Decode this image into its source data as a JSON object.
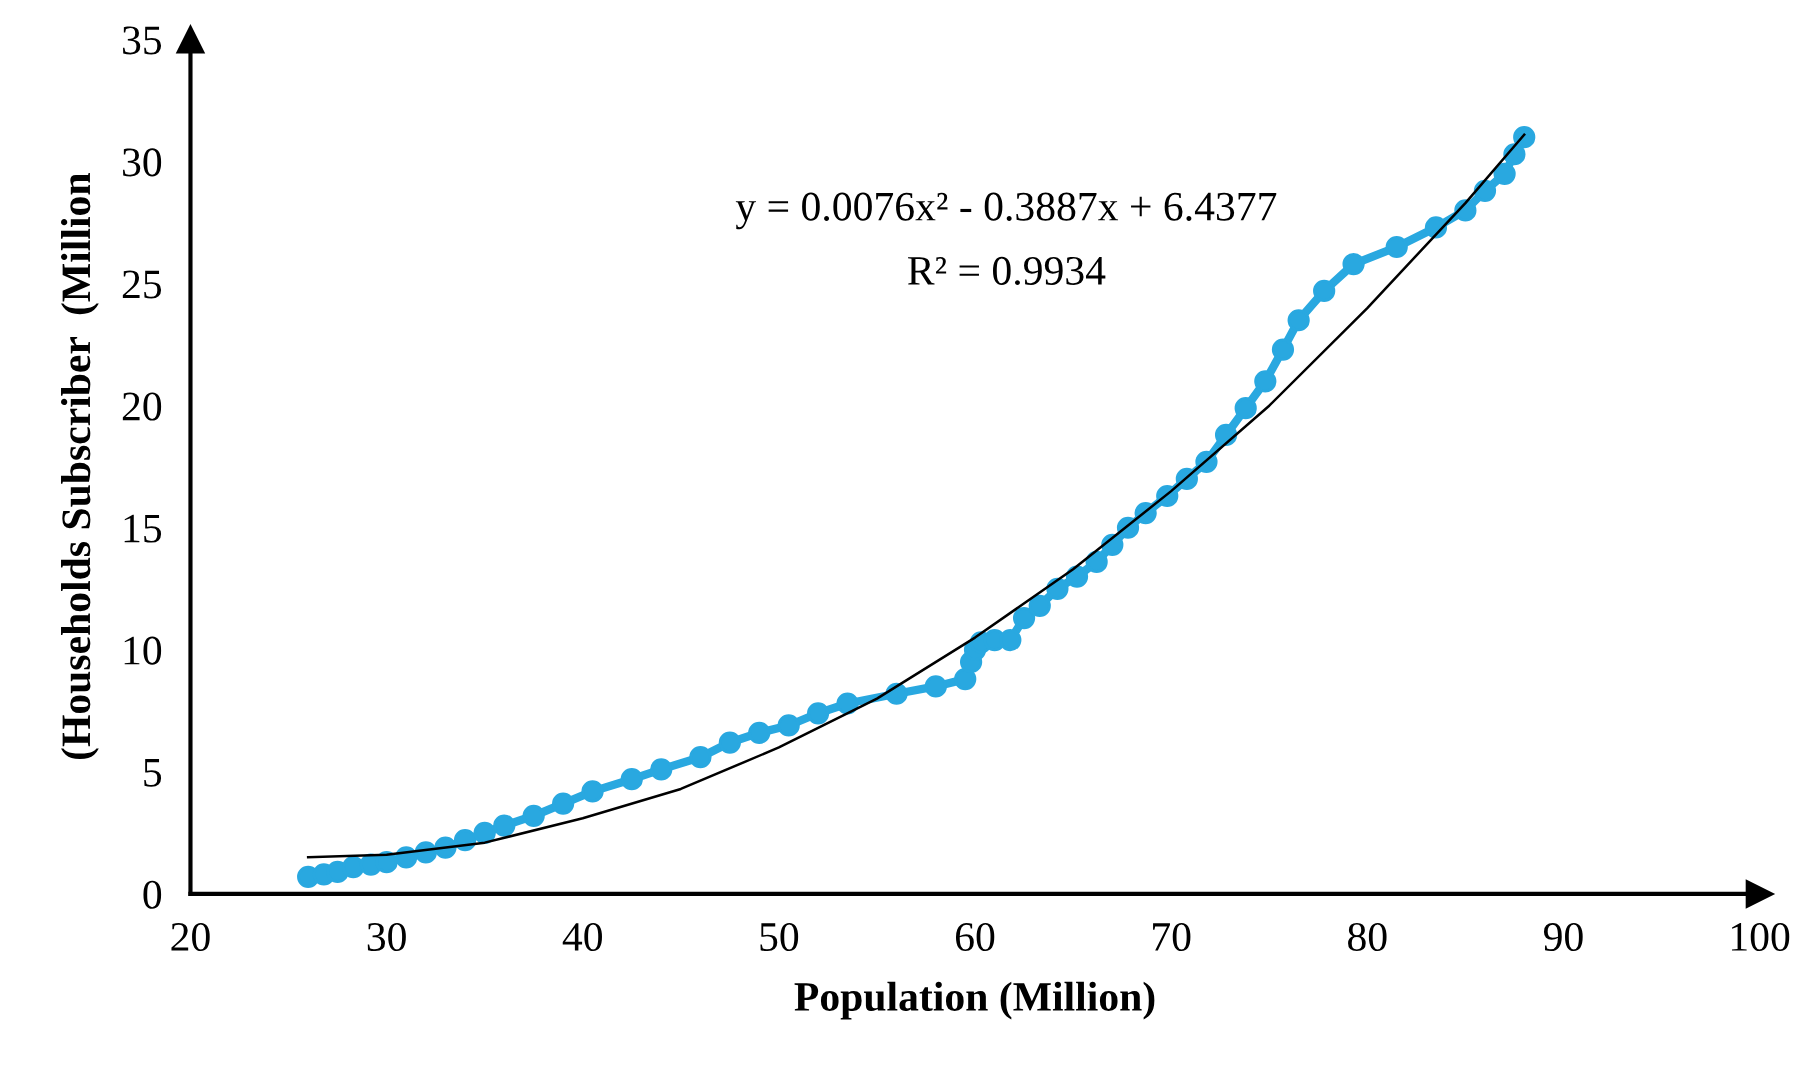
{
  "chart_data": {
    "type": "line",
    "xlabel": "Population (Million)",
    "ylabel": "(Households Subscriber  (Million",
    "xlim": [
      20,
      100
    ],
    "ylim": [
      0,
      35
    ],
    "xticks": [
      20,
      30,
      40,
      50,
      60,
      70,
      80,
      90,
      100
    ],
    "yticks": [
      0,
      5,
      10,
      15,
      20,
      25,
      30,
      35
    ],
    "grid": false,
    "legend": false,
    "annotations": [
      "y = 0.0076x² - 0.3887x + 6.4377",
      "R² = 0.9934"
    ],
    "series": [
      {
        "color": "#29a8e0",
        "marker": "circle",
        "line_style": "solid",
        "x": [
          26,
          26.8,
          27.5,
          28.3,
          29.2,
          30,
          31,
          32,
          33,
          34,
          35,
          36,
          37.5,
          39,
          40.5,
          42.5,
          44,
          46,
          47.5,
          49,
          50.5,
          52,
          53.5,
          56,
          58,
          59.5,
          59.8,
          60,
          60.3,
          61,
          61.8,
          62.5,
          63.3,
          64.2,
          65.2,
          66.2,
          67,
          67.8,
          68.7,
          69.8,
          70.8,
          71.8,
          72.8,
          73.8,
          74.8,
          75.7,
          76.5,
          77.8,
          79.3,
          81.5,
          83.5,
          85,
          86,
          87,
          87.5,
          88
        ],
        "values": [
          0.7,
          0.8,
          0.9,
          1.1,
          1.2,
          1.3,
          1.5,
          1.7,
          1.9,
          2.2,
          2.5,
          2.8,
          3.2,
          3.7,
          4.2,
          4.7,
          5.1,
          5.6,
          6.2,
          6.6,
          6.9,
          7.4,
          7.8,
          8.2,
          8.5,
          8.8,
          9.5,
          10,
          10.3,
          10.4,
          10.4,
          11.3,
          11.8,
          12.5,
          13,
          13.6,
          14.3,
          15,
          15.6,
          16.3,
          17,
          17.7,
          18.8,
          19.9,
          21,
          22.3,
          23.5,
          24.7,
          25.8,
          26.5,
          27.3,
          28,
          28.8,
          29.5,
          30.3,
          31
        ]
      },
      {
        "type": "line",
        "color": "#000000",
        "marker": "none",
        "line_style": "solid",
        "x": [
          26,
          30,
          35,
          40,
          45,
          50,
          55,
          60,
          65,
          70,
          75,
          80,
          85,
          88
        ],
        "values": [
          1.5,
          1.6,
          2.1,
          3.1,
          4.3,
          6.0,
          8.0,
          10.5,
          13.3,
          16.5,
          20.0,
          24.0,
          28.3,
          31.1
        ]
      }
    ]
  }
}
